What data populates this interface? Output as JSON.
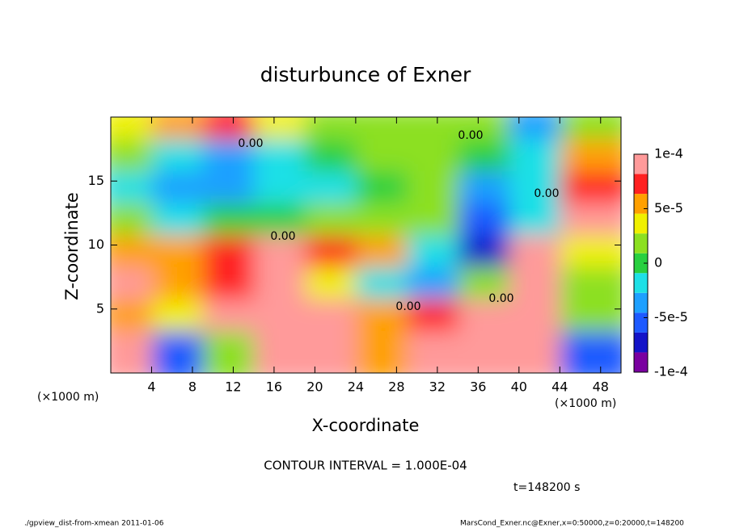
{
  "chart_data": {
    "type": "heatmap",
    "title": "disturbunce of Exner",
    "xlabel": "X-coordinate",
    "ylabel": "Z-coordinate",
    "xunit": "(×1000 m)",
    "yunit": "(×1000 m)",
    "xlim": [
      0,
      50
    ],
    "ylim": [
      0,
      20
    ],
    "xticks": [
      4,
      8,
      12,
      16,
      20,
      24,
      28,
      32,
      36,
      40,
      44,
      48
    ],
    "yticks": [
      5,
      10,
      15
    ],
    "x": [
      2.5,
      7.5,
      12.5,
      17.5,
      22.5,
      27.5,
      32.5,
      37.5,
      42.5,
      47.5
    ],
    "y": [
      18.75,
      16.25,
      13.75,
      11.25,
      8.75,
      6.25,
      3.75,
      1.25
    ],
    "z": [
      [
        4e-05,
        6e-05,
        8e-05,
        4e-05,
        2e-05,
        2e-05,
        1e-05,
        1e-05,
        -3e-05,
        2e-05
      ],
      [
        1e-05,
        -2e-05,
        -3e-05,
        -2e-05,
        0,
        1e-05,
        2e-05,
        0,
        -1e-05,
        5e-05
      ],
      [
        -1e-05,
        -3e-05,
        -3e-05,
        -2e-05,
        -2e-05,
        0,
        1e-05,
        -3e-05,
        -2e-05,
        7e-05
      ],
      [
        1e-05,
        -1e-05,
        0,
        0,
        2e-05,
        2e-05,
        1e-05,
        -6e-05,
        -2e-05,
        0.0001
      ],
      [
        6e-05,
        5e-05,
        7e-05,
        0.0001,
        8e-05,
        6e-05,
        -2e-05,
        -7e-05,
        0.0001,
        4e-05
      ],
      [
        0.0001,
        5e-05,
        8e-05,
        0.0001,
        3e-05,
        -2e-05,
        -3e-05,
        1e-05,
        0.0001,
        2e-05
      ],
      [
        6e-05,
        4e-05,
        9e-05,
        0.0001,
        0.0001,
        6e-05,
        8e-05,
        0.0001,
        0.0001,
        2e-05
      ],
      [
        0.0001,
        -5e-05,
        2e-05,
        0.0001,
        0.0001,
        5e-05,
        0.0001,
        0.0001,
        0.0001,
        -6e-05
      ]
    ],
    "colorbar": {
      "lim": [
        -0.0001,
        0.0001
      ],
      "ticks": [
        {
          "value": 0.0001,
          "label": "1e-4"
        },
        {
          "value": 5e-05,
          "label": "5e-5"
        },
        0,
        {
          "value": -5e-05,
          "label": "-5e-5"
        },
        {
          "value": -0.0001,
          "label": "-1e-4"
        }
      ]
    },
    "contour_labels": [
      "0.00",
      "0.00",
      "0.00",
      "0.00",
      "0.00",
      "0.00"
    ],
    "annotation": "CONTOUR INTERVAL = 1.000E-04",
    "time_label": "t=148200 s",
    "footer_left": "./gpview_dist-from-xmean  2011-01-06",
    "footer_right": "MarsCond_Exner.nc@Exner,x=0:50000,z=0:20000,t=148200"
  }
}
